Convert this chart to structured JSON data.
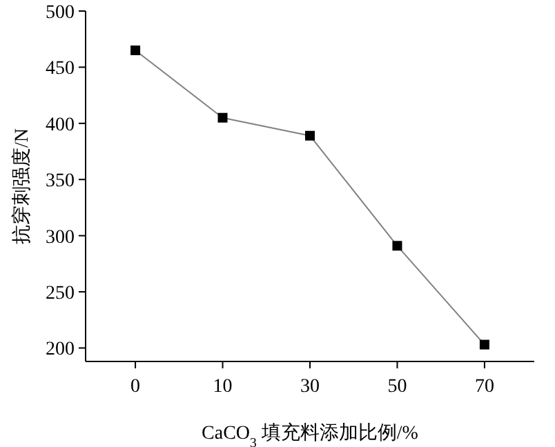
{
  "chart_data": {
    "type": "line",
    "xlabel": "CaCO$_{3}$ 填充料添加比例/%",
    "ylabel": "抗穿刺强度/N",
    "categories": [
      "0",
      "10",
      "30",
      "50",
      "70"
    ],
    "series": [
      {
        "color": "#808080",
        "values": [
          465,
          405,
          389,
          291,
          203
        ]
      }
    ],
    "ylim": [
      188,
      500
    ],
    "yticks": [
      200,
      250,
      300,
      350,
      400,
      450,
      500
    ],
    "marker": "square",
    "line_style": "solid",
    "grid": false
  }
}
